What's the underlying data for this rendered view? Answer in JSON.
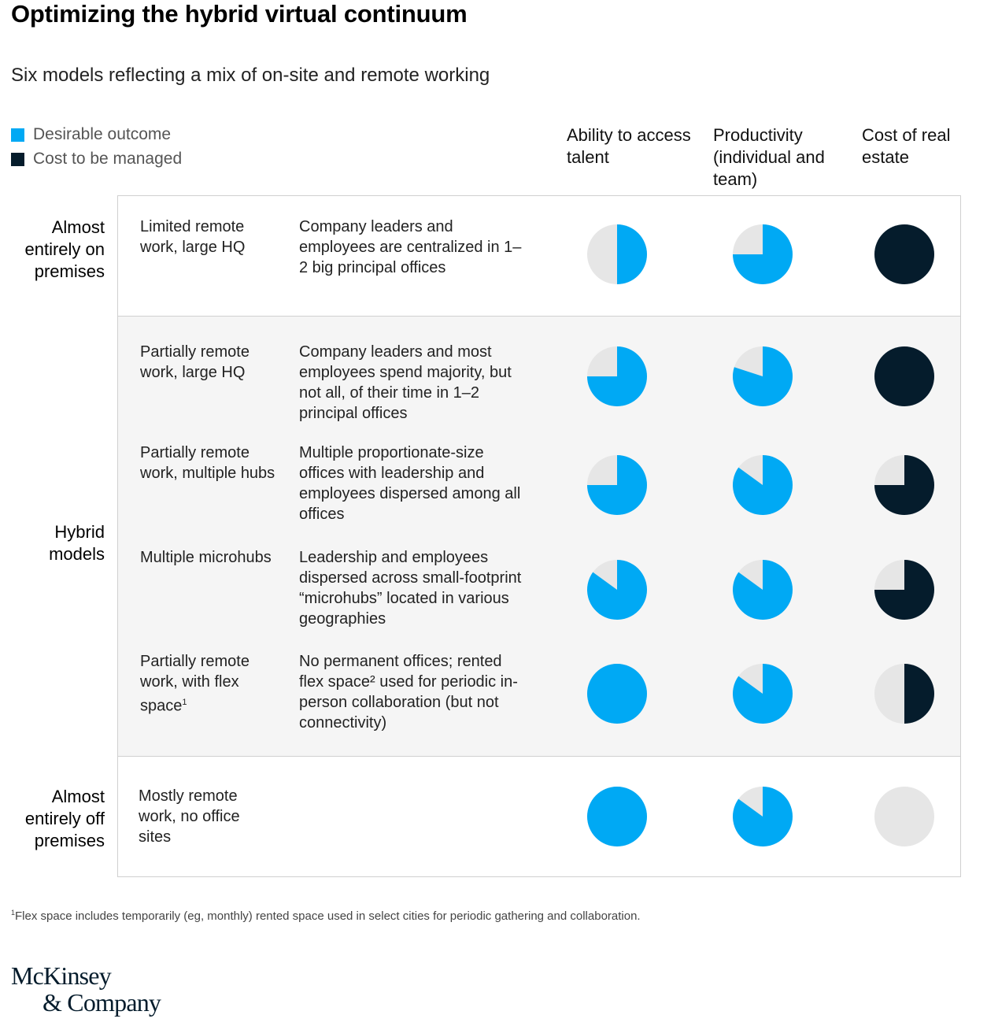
{
  "title": "Optimizing the hybrid virtual continuum",
  "subtitle": "Six models reflecting a mix of on-site and remote working",
  "legend": {
    "desirable": "Desirable outcome",
    "cost": "Cost to be managed"
  },
  "colors": {
    "desirable": "#00a9f4",
    "cost": "#051c2c",
    "empty": "#e6e6e6",
    "shade": "#f5f5f5"
  },
  "columns": {
    "talent": "Ability to access talent",
    "productivity": "Productivity (individual and team)",
    "cost": "Cost of real estate"
  },
  "groups": {
    "on": "Almost entirely on premises",
    "hybrid": "Hybrid models",
    "off": "Almost entirely off premises"
  },
  "rows": [
    {
      "model": "Limited remote work, large HQ",
      "desc": "Company leaders and employees are centralized in 1–2 big principal offices"
    },
    {
      "model": "Partially remote work, large HQ",
      "desc": "Company leaders and most employees spend majority, but not all, of their time in 1–2 principal offices"
    },
    {
      "model": "Partially remote work, multiple hubs",
      "desc": "Multiple proportionate-size offices with leadership and employees dispersed among all offices"
    },
    {
      "model": "Multiple microhubs",
      "desc": "Leadership and employees dispersed across small-footprint “microhubs” located in various geographies"
    },
    {
      "model": "Partially remote work, with flex space",
      "model_sup": "1",
      "desc": "No permanent offices; rented flex space² used for periodic in-person collaboration (but not connectivity)"
    },
    {
      "model": "Mostly remote work, no office sites",
      "desc": ""
    }
  ],
  "chart_data": {
    "type": "pie",
    "title": "Optimizing the hybrid virtual continuum",
    "metrics": [
      "Ability to access talent",
      "Productivity (individual and team)",
      "Cost of real estate"
    ],
    "series": [
      {
        "name": "Limited remote work, large HQ",
        "values": [
          0.5,
          0.75,
          1.0
        ]
      },
      {
        "name": "Partially remote work, large HQ",
        "values": [
          0.75,
          0.8,
          1.0
        ]
      },
      {
        "name": "Partially remote work, multiple hubs",
        "values": [
          0.75,
          0.85,
          0.75
        ]
      },
      {
        "name": "Multiple microhubs",
        "values": [
          0.85,
          0.85,
          0.75
        ]
      },
      {
        "name": "Partially remote work, with flex space",
        "values": [
          1.0,
          0.85,
          0.5
        ]
      },
      {
        "name": "Mostly remote work, no office sites",
        "values": [
          1.0,
          0.85,
          0.0
        ]
      }
    ],
    "metric_kind": [
      "desirable",
      "desirable",
      "cost"
    ]
  },
  "footnote": "Flex space includes temporarily (eg, monthly) rented space used in select cities for periodic gathering and collaboration.",
  "footnote_mark": "1",
  "logo": {
    "line1": "McKinsey",
    "line2": "& Company"
  }
}
